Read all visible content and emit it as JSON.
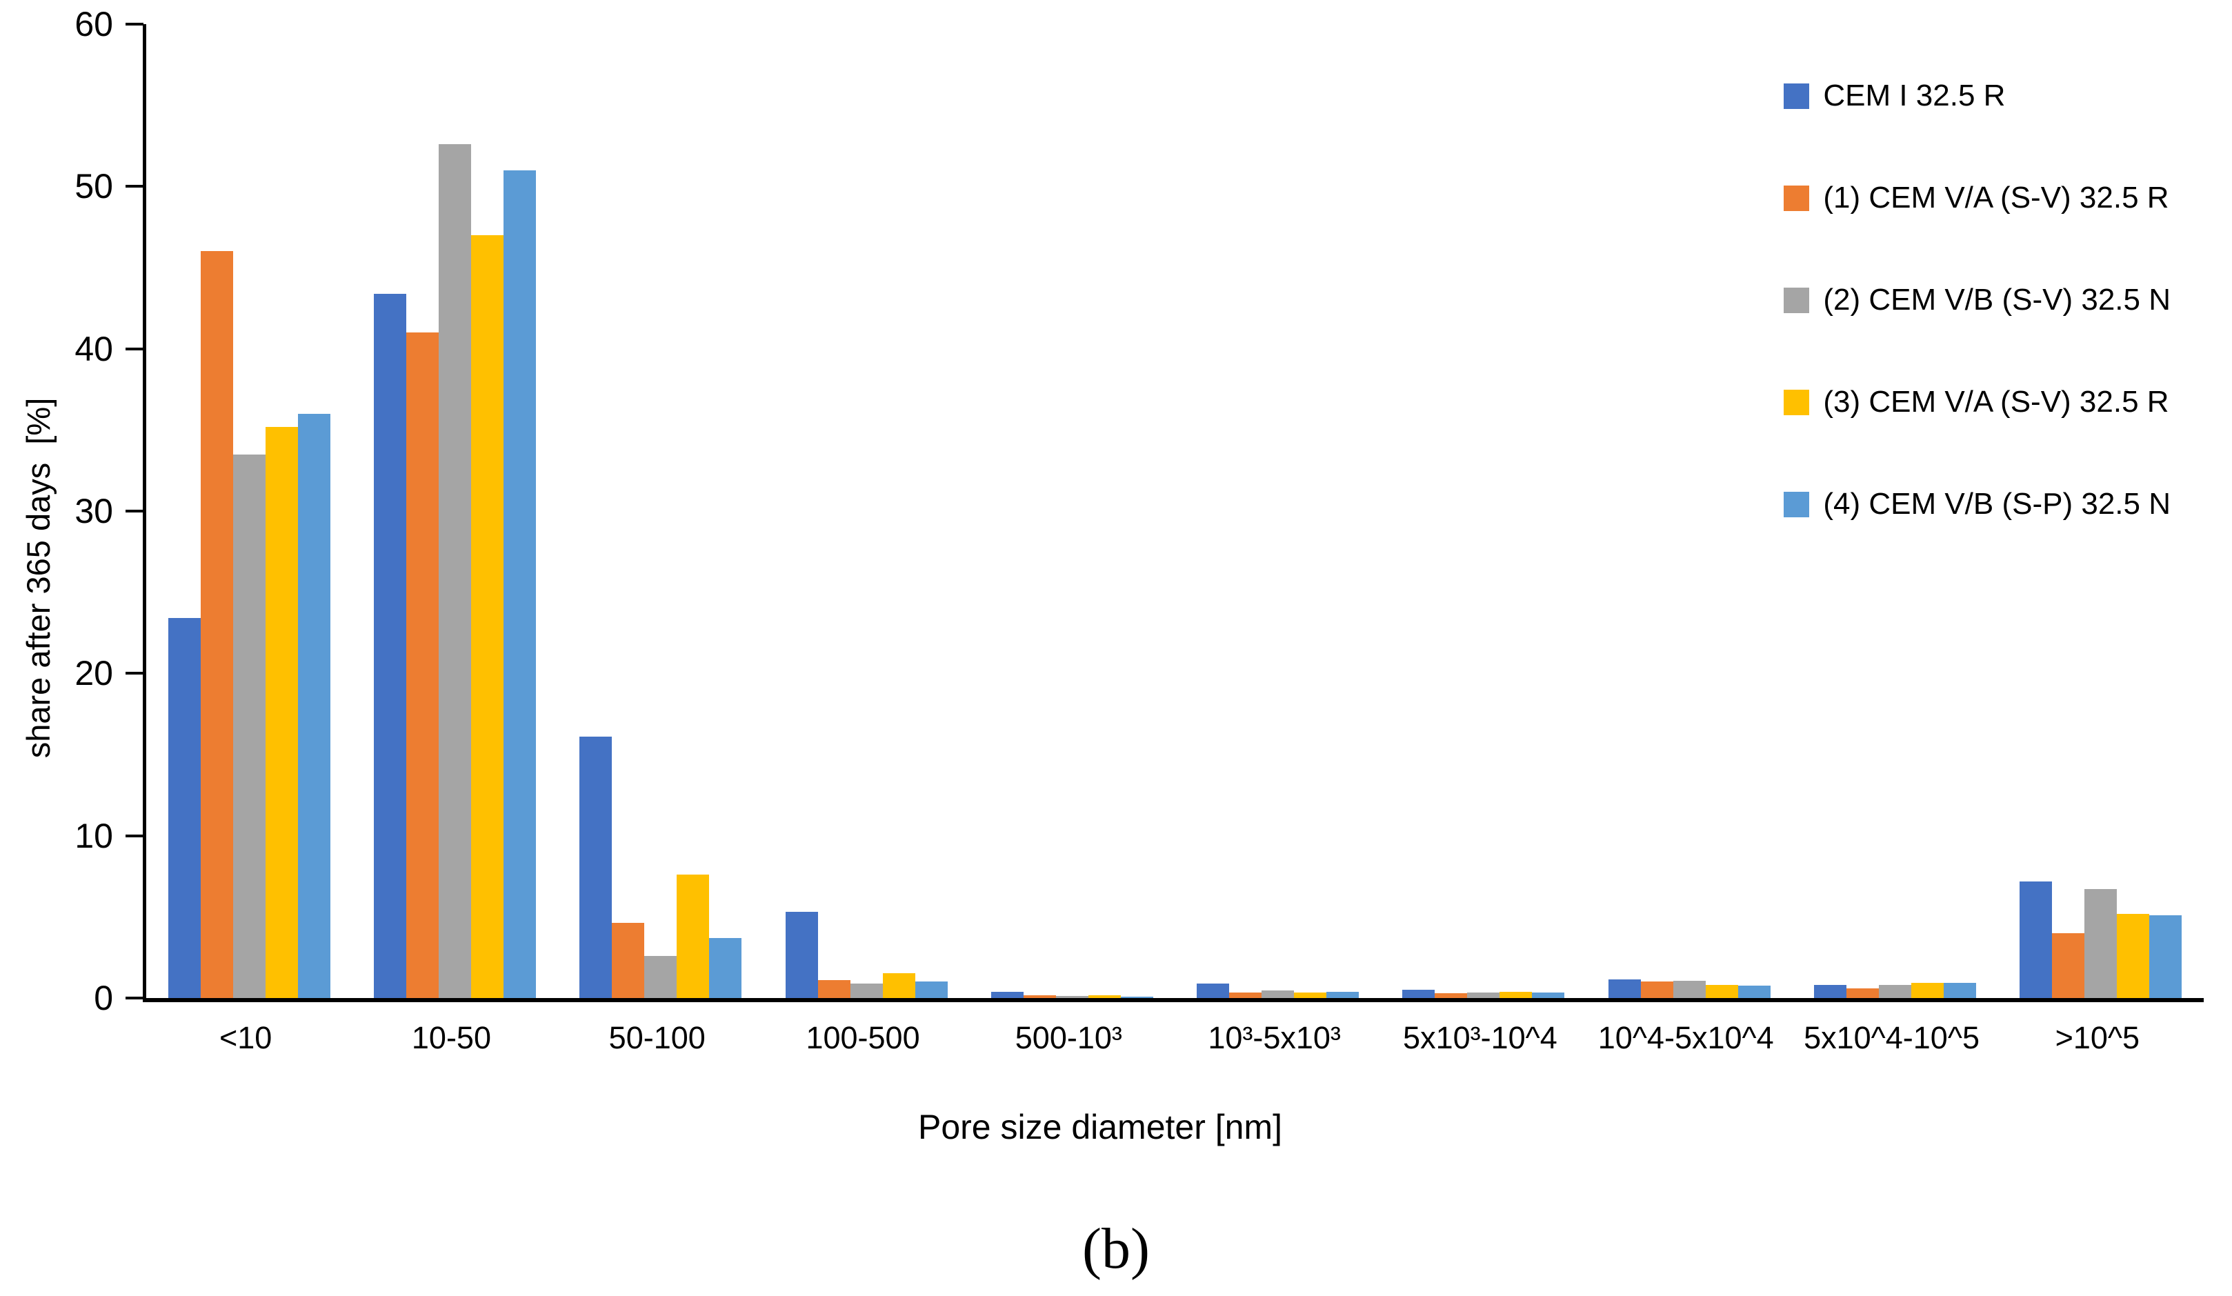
{
  "figure": {
    "caption": "(b)",
    "background": "#ffffff"
  },
  "chart_data": {
    "type": "bar",
    "title": "",
    "xlabel": "Pore size diameter [nm]",
    "ylabel": "share after 365 days  [%]",
    "ylim": [
      0,
      60
    ],
    "yticks": [
      0,
      10,
      20,
      30,
      40,
      50,
      60
    ],
    "grid": false,
    "legend_position": "top-right",
    "axis_color": "#000000",
    "text_color": "#000000",
    "categories": [
      "<10",
      "10-50",
      "50-100",
      "100-500",
      "500-10³",
      "10³-5x10³",
      "5x10³-10^4",
      "10^4-5x10^4",
      "5x10^4-10^5",
      ">10^5"
    ],
    "series": [
      {
        "name": "CEM I 32.5 R",
        "color": "#4472C4",
        "values": [
          23.4,
          43.4,
          16.1,
          5.3,
          0.4,
          0.9,
          0.5,
          1.15,
          0.8,
          7.2
        ]
      },
      {
        "name": "(1) CEM V/A (S-V) 32.5 R",
        "color": "#ED7D31",
        "values": [
          46.0,
          41.0,
          4.65,
          1.1,
          0.15,
          0.35,
          0.3,
          1.0,
          0.6,
          4.0
        ]
      },
      {
        "name": "(2) CEM V/B (S-V) 32.5 N",
        "color": "#A5A5A5",
        "values": [
          33.5,
          52.6,
          2.6,
          0.9,
          0.13,
          0.45,
          0.35,
          1.05,
          0.8,
          6.7
        ]
      },
      {
        "name": "(3) CEM V/A (S-V) 32.5 R",
        "color": "#FFC000",
        "values": [
          35.2,
          47.0,
          7.6,
          1.55,
          0.15,
          0.35,
          0.4,
          0.8,
          0.95,
          5.2
        ]
      },
      {
        "name": "(4) CEM V/B (S-P) 32.5 N",
        "color": "#5B9BD5",
        "values": [
          36.0,
          51.0,
          3.7,
          1.0,
          0.1,
          0.4,
          0.35,
          0.75,
          0.95,
          5.1
        ]
      }
    ]
  }
}
